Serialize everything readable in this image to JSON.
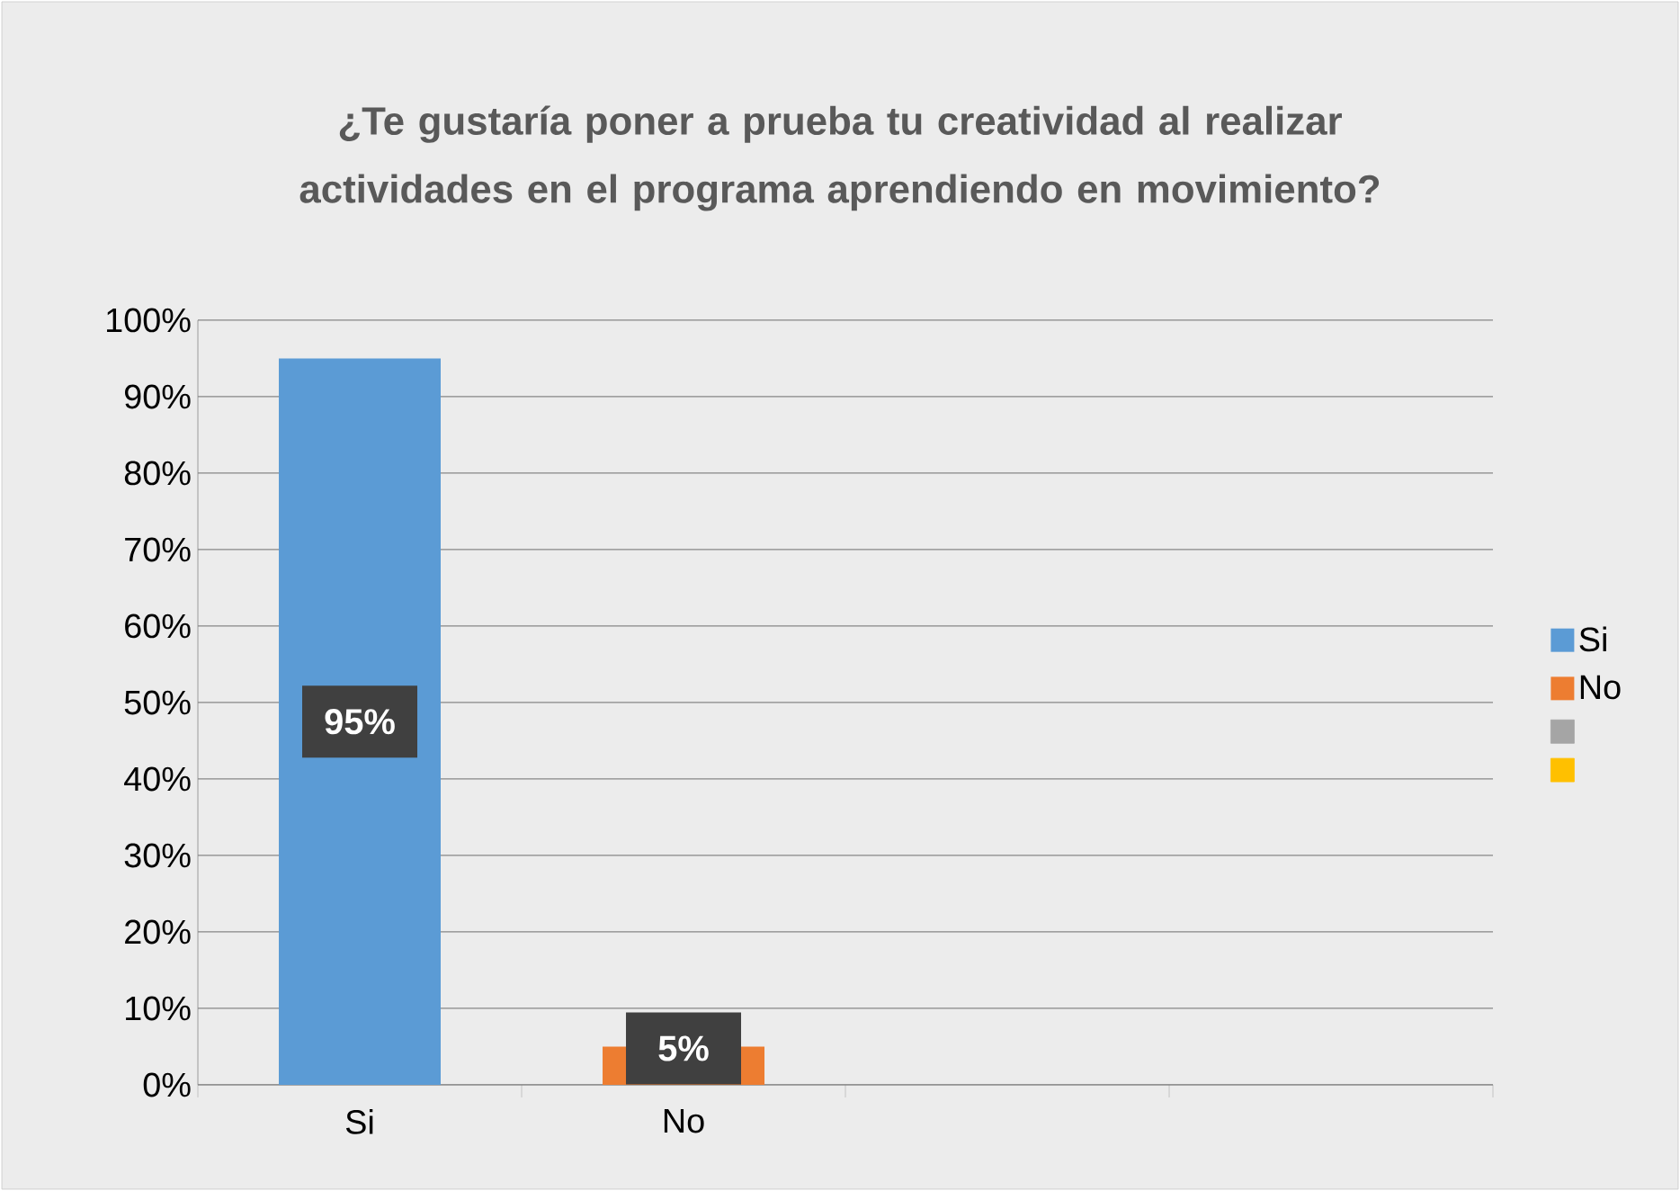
{
  "chart_data": {
    "type": "bar",
    "title": "¿Te gustaría poner a prueba tu creatividad al realizar actividades en el programa aprendiendo en movimiento?",
    "categories": [
      "Si",
      "No",
      null,
      null
    ],
    "series": [
      {
        "name": "Si",
        "color": "#5b9bd5",
        "values": [
          95,
          null,
          null,
          null
        ],
        "value_labels": [
          "95%",
          null,
          null,
          null
        ]
      },
      {
        "name": "No",
        "color": "#ed7d31",
        "values": [
          null,
          5,
          null,
          null
        ],
        "value_labels": [
          null,
          "5%",
          null,
          null
        ]
      },
      {
        "color": "#a5a5a5",
        "values": [
          null,
          null,
          null,
          null
        ]
      },
      {
        "color": "#ffc000",
        "values": [
          null,
          null,
          null,
          null
        ]
      }
    ],
    "ylim": [
      0,
      100
    ],
    "yticks": [
      {
        "value": 0,
        "label": "0%"
      },
      {
        "value": 10,
        "label": "10%"
      },
      {
        "value": 20,
        "label": "20%"
      },
      {
        "value": 30,
        "label": "30%"
      },
      {
        "value": 40,
        "label": "40%"
      },
      {
        "value": 50,
        "label": "50%"
      },
      {
        "value": 60,
        "label": "60%"
      },
      {
        "value": 70,
        "label": "70%"
      },
      {
        "value": 80,
        "label": "80%"
      },
      {
        "value": 90,
        "label": "90%"
      },
      {
        "value": 100,
        "label": "100%"
      }
    ],
    "grid": "y",
    "legend": "right"
  }
}
